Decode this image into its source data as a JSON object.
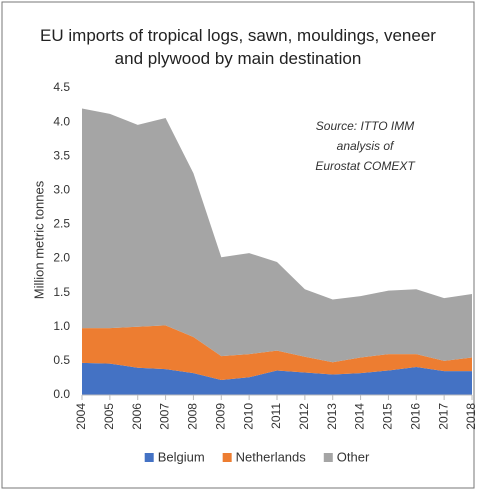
{
  "chart_data": {
    "type": "stacked_area",
    "title": "EU imports of tropical logs, sawn, mouldings, veneer and plywood by main destination",
    "y_label": "Million metric tonnes",
    "annotation": [
      "Source: ITTO IMM",
      "analysis of",
      "Eurostat COMEXT"
    ],
    "categories": [
      "2004",
      "2005",
      "2006",
      "2007",
      "2008",
      "2009",
      "2010",
      "2011",
      "2012",
      "2013",
      "2014",
      "2015",
      "2016",
      "2017",
      "2018"
    ],
    "series": [
      {
        "name": "Belgium",
        "color": "#4472c4",
        "values": [
          0.47,
          0.46,
          0.4,
          0.38,
          0.32,
          0.22,
          0.26,
          0.36,
          0.33,
          0.3,
          0.32,
          0.36,
          0.41,
          0.35,
          0.35
        ]
      },
      {
        "name": "Netherlands",
        "color": "#ed7d31",
        "values": [
          0.51,
          0.52,
          0.6,
          0.64,
          0.53,
          0.35,
          0.34,
          0.29,
          0.23,
          0.18,
          0.23,
          0.24,
          0.19,
          0.15,
          0.2
        ]
      },
      {
        "name": "Other",
        "color": "#a5a5a5",
        "values": [
          3.22,
          3.14,
          2.96,
          3.04,
          2.4,
          1.45,
          1.48,
          1.3,
          0.99,
          0.92,
          0.9,
          0.93,
          0.95,
          0.92,
          0.93
        ]
      }
    ],
    "ylim": [
      0,
      4.5
    ],
    "yticks": [
      {
        "value": 0,
        "label": "0.0"
      },
      0.5,
      {
        "value": 1,
        "label": "1.0"
      },
      1.5,
      {
        "value": 2,
        "label": "2.0"
      },
      2.5,
      {
        "value": 3,
        "label": "3.0"
      },
      3.5,
      {
        "value": 4,
        "label": "4.0"
      },
      4.5
    ],
    "legend": "bottom"
  }
}
